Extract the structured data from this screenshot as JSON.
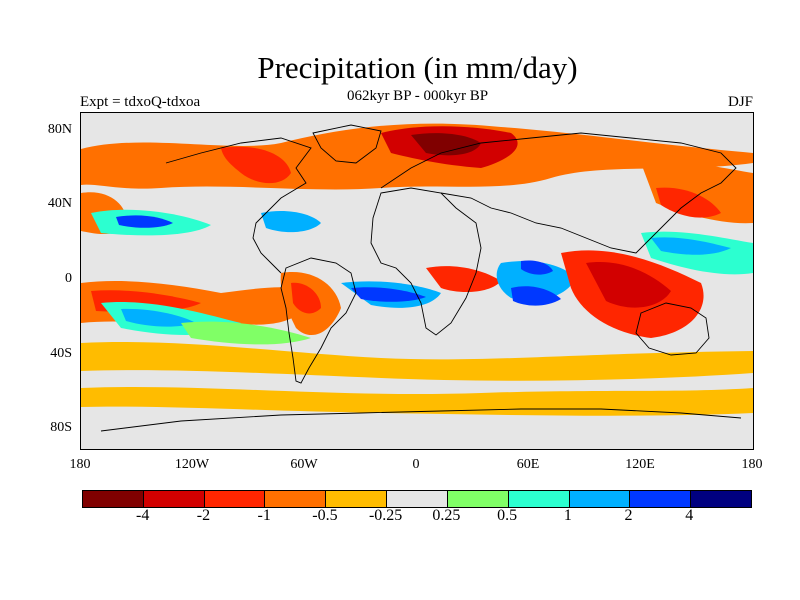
{
  "figure": {
    "title": "Precipitation (in mm/day)",
    "subtitle": "062kyr BP - 000kyr BP",
    "left_label": "Expt = tdxoQ-tdxoa",
    "right_label": "DJF"
  },
  "axes": {
    "lat_ticks": [
      "80N",
      "40N",
      "0",
      "40S",
      "80S"
    ],
    "lat_values": [
      80,
      40,
      0,
      -40,
      -80
    ],
    "lon_ticks": [
      "180",
      "120W",
      "60W",
      "0",
      "60E",
      "120E",
      "180"
    ],
    "lon_values": [
      -180,
      -120,
      -60,
      0,
      60,
      120,
      180
    ],
    "lat_range": [
      -90,
      90
    ],
    "lon_range": [
      -180,
      180
    ]
  },
  "colorbar": {
    "labels": [
      "-4",
      "-2",
      "-1",
      "-0.5",
      "-0.25",
      "0.25",
      "0.5",
      "1",
      "2",
      "4"
    ],
    "colors": [
      "#800000",
      "#d20000",
      "#ff2600",
      "#ff7000",
      "#ffbc00",
      "#e6e6e6",
      "#80ff66",
      "#2cffd0",
      "#00b0ff",
      "#0038ff",
      "#000080"
    ]
  },
  "map": {
    "background_color": "#e6e6e6",
    "coastline_color": "#000000"
  }
}
